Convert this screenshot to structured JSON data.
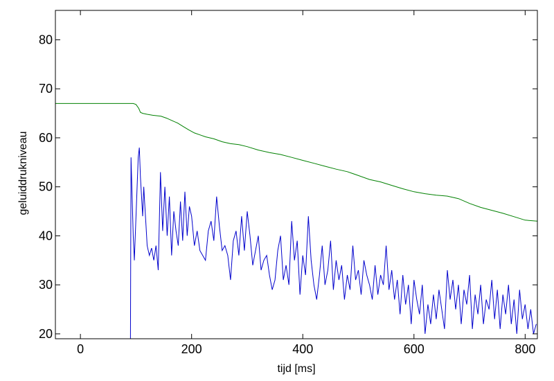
{
  "chart_data": {
    "type": "line",
    "title": "",
    "xlabel": "tijd  [ms]",
    "ylabel": "geluiddrukniveau",
    "xlim": [
      -45,
      822
    ],
    "ylim": [
      19,
      86
    ],
    "xticks": [
      0,
      200,
      400,
      600,
      800
    ],
    "yticks": [
      20,
      30,
      40,
      50,
      60,
      70,
      80
    ],
    "grid": false,
    "legend": "none",
    "series": [
      {
        "color": "#008000",
        "x": [
          -45,
          95,
          100,
          105,
          108,
          112,
          120,
          130,
          145,
          155,
          165,
          175,
          185,
          195,
          205,
          215,
          225,
          240,
          255,
          270,
          285,
          300,
          320,
          340,
          360,
          380,
          400,
          420,
          440,
          460,
          480,
          500,
          520,
          540,
          560,
          580,
          600,
          620,
          640,
          660,
          680,
          700,
          720,
          740,
          760,
          780,
          800,
          822
        ],
        "y": [
          67,
          67,
          66.8,
          66,
          65.2,
          65,
          64.8,
          64.6,
          64.4,
          64,
          63.5,
          63,
          62.3,
          61.6,
          61,
          60.6,
          60.2,
          59.8,
          59.2,
          58.8,
          58.6,
          58.2,
          57.5,
          57,
          56.6,
          56,
          55.4,
          54.8,
          54.2,
          53.6,
          53.1,
          52.3,
          51.5,
          51,
          50.3,
          49.6,
          49,
          48.6,
          48.3,
          48.1,
          47.6,
          46.6,
          45.8,
          45.2,
          44.6,
          43.9,
          43.2,
          43
        ]
      },
      {
        "color": "#0000cc",
        "x": [
          90,
          91,
          93,
          95,
          97,
          100,
          102,
          104,
          106,
          108,
          110,
          112,
          114,
          116,
          118,
          120,
          124,
          128,
          132,
          136,
          140,
          144,
          148,
          152,
          156,
          160,
          164,
          168,
          172,
          176,
          180,
          184,
          188,
          192,
          196,
          200,
          205,
          210,
          215,
          220,
          225,
          230,
          235,
          240,
          245,
          250,
          255,
          260,
          265,
          270,
          275,
          280,
          285,
          290,
          295,
          300,
          305,
          310,
          315,
          320,
          325,
          330,
          335,
          340,
          345,
          350,
          355,
          360,
          365,
          370,
          375,
          380,
          385,
          390,
          395,
          400,
          405,
          410,
          415,
          420,
          425,
          430,
          435,
          440,
          445,
          450,
          455,
          460,
          465,
          470,
          475,
          480,
          485,
          490,
          495,
          500,
          505,
          510,
          515,
          520,
          525,
          530,
          535,
          540,
          545,
          550,
          555,
          560,
          565,
          570,
          575,
          580,
          585,
          590,
          595,
          600,
          605,
          610,
          615,
          620,
          625,
          630,
          635,
          640,
          645,
          650,
          655,
          660,
          665,
          670,
          675,
          680,
          685,
          690,
          695,
          700,
          705,
          710,
          715,
          720,
          725,
          730,
          735,
          740,
          745,
          750,
          755,
          760,
          765,
          770,
          775,
          780,
          785,
          790,
          795,
          800,
          805,
          810,
          815,
          820
        ],
        "y": [
          19,
          56,
          48,
          40,
          35,
          44,
          50,
          56,
          58,
          52,
          48,
          44,
          50,
          46,
          42,
          38,
          36,
          37.5,
          35,
          38,
          33,
          53,
          41,
          50,
          40,
          48,
          36,
          45,
          41,
          38,
          47,
          39,
          49,
          40,
          46,
          44,
          38,
          41,
          37,
          36,
          35,
          41,
          43,
          39,
          48,
          42,
          37,
          38,
          36,
          31,
          39,
          41,
          36,
          44,
          37,
          45,
          40,
          34,
          37,
          40,
          33,
          35,
          36,
          32,
          29,
          31,
          37,
          40,
          31,
          34,
          30,
          43,
          35,
          39,
          28,
          36,
          32,
          44,
          35,
          30,
          27,
          32,
          38,
          30,
          33,
          39,
          29,
          35,
          31,
          34,
          27,
          32,
          29,
          38,
          31,
          33,
          28,
          35,
          32,
          30,
          27,
          34,
          28,
          32,
          30,
          38,
          29,
          33,
          27,
          31,
          24,
          32,
          26,
          30,
          22,
          31,
          27,
          24,
          30,
          20,
          26,
          22,
          28,
          23,
          29,
          25,
          21,
          33,
          27,
          31,
          25,
          30,
          22,
          29,
          26,
          32,
          21,
          28,
          24,
          30,
          22,
          27,
          25,
          31,
          23,
          29,
          21,
          28,
          24,
          30,
          22,
          27,
          20,
          29,
          23,
          26,
          21,
          25,
          20,
          22
        ]
      }
    ]
  }
}
